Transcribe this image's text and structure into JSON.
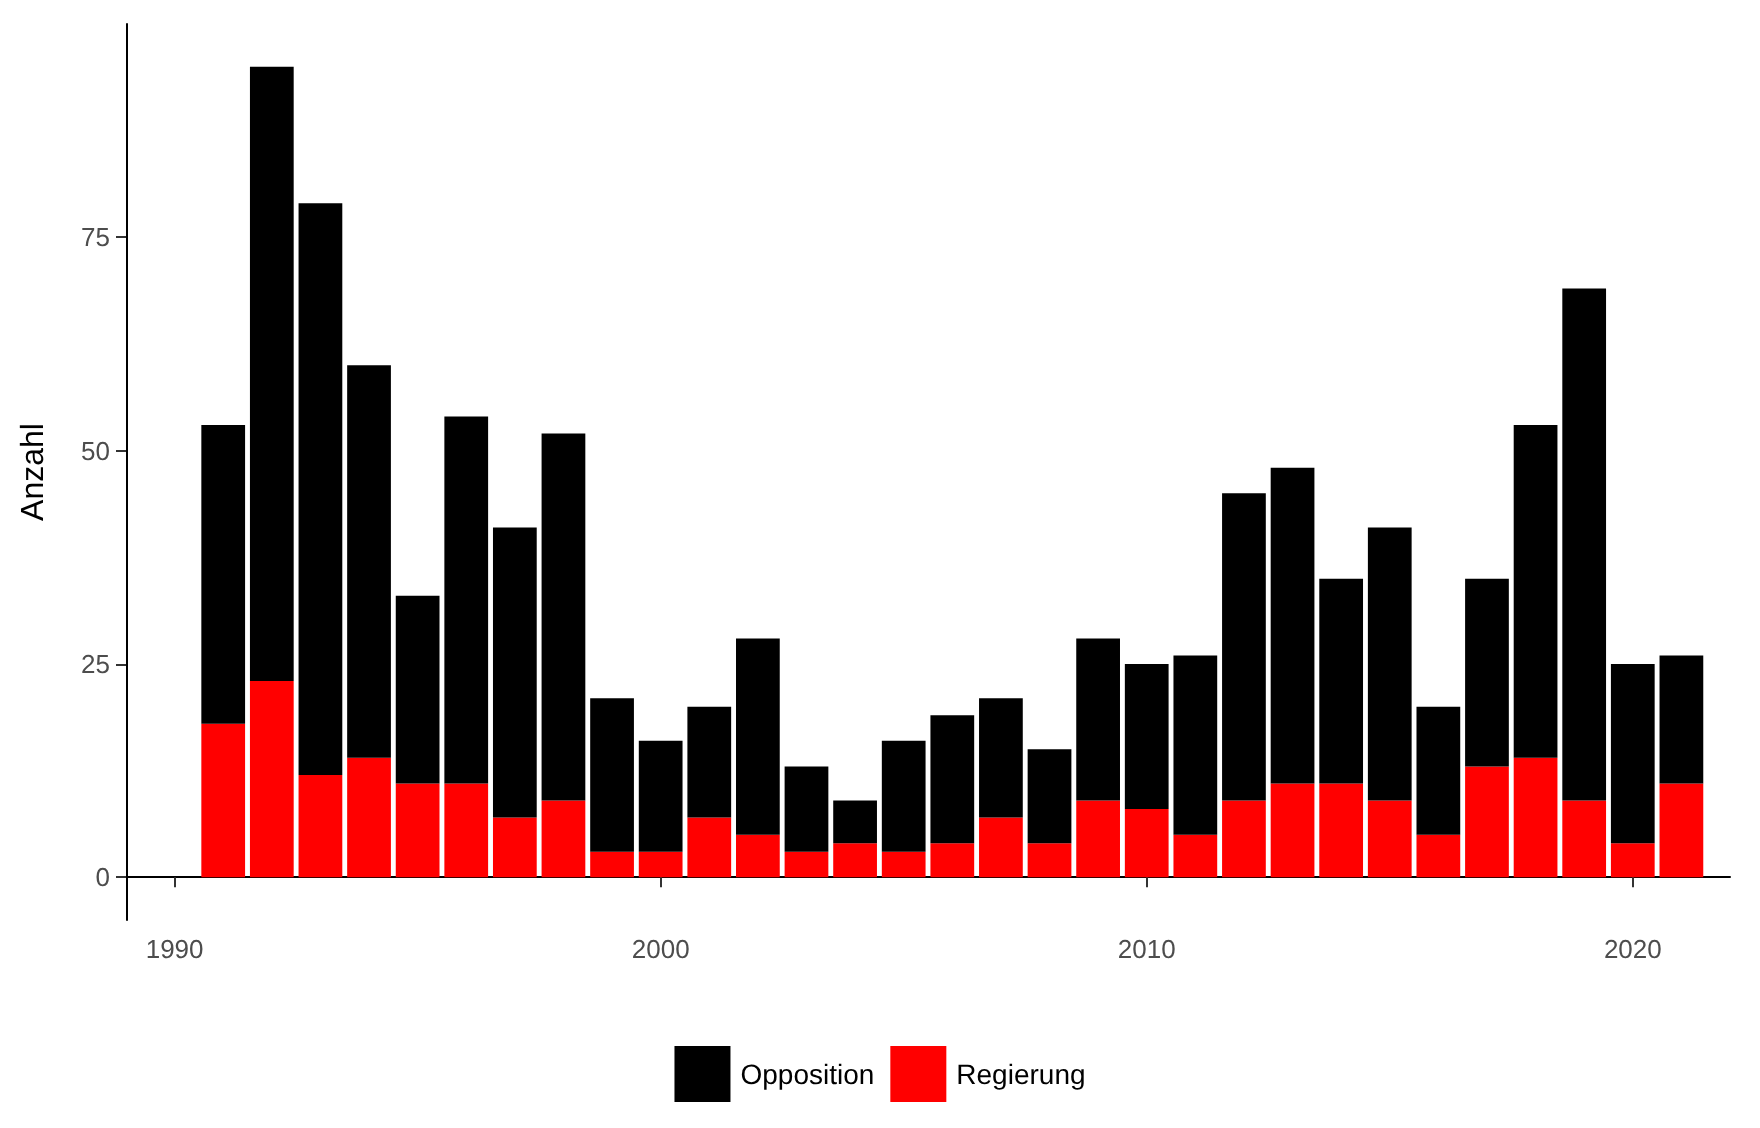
{
  "chart_data": {
    "type": "bar",
    "stacked": true,
    "ylabel": "Anzahl",
    "legend": "bottom",
    "grid": false,
    "x": [
      1991,
      1992,
      1993,
      1994,
      1995,
      1996,
      1997,
      1998,
      1999,
      2000,
      2001,
      2002,
      2003,
      2004,
      2005,
      2006,
      2007,
      2008,
      2009,
      2010,
      2011,
      2012,
      2013,
      2014,
      2015,
      2016,
      2017,
      2018,
      2019,
      2020,
      2021
    ],
    "xlim": [
      1989,
      2022
    ],
    "xticks": [
      1990,
      2000,
      2010,
      2020
    ],
    "ylim": [
      -5,
      100
    ],
    "yticks": [
      0,
      25,
      50,
      75
    ],
    "series": [
      {
        "name": "Regierung",
        "color": "#ff0000",
        "values": [
          18,
          23,
          12,
          14,
          11,
          11,
          7,
          9,
          3,
          3,
          7,
          5,
          3,
          4,
          3,
          4,
          7,
          4,
          9,
          8,
          5,
          9,
          11,
          11,
          9,
          5,
          13,
          14,
          9,
          4,
          11
        ]
      },
      {
        "name": "Opposition",
        "color": "#000000",
        "values": [
          35,
          72,
          67,
          46,
          22,
          43,
          34,
          43,
          18,
          13,
          13,
          23,
          10,
          5,
          13,
          15,
          14,
          11,
          19,
          17,
          21,
          36,
          37,
          24,
          32,
          15,
          22,
          39,
          60,
          21,
          15
        ]
      }
    ]
  }
}
